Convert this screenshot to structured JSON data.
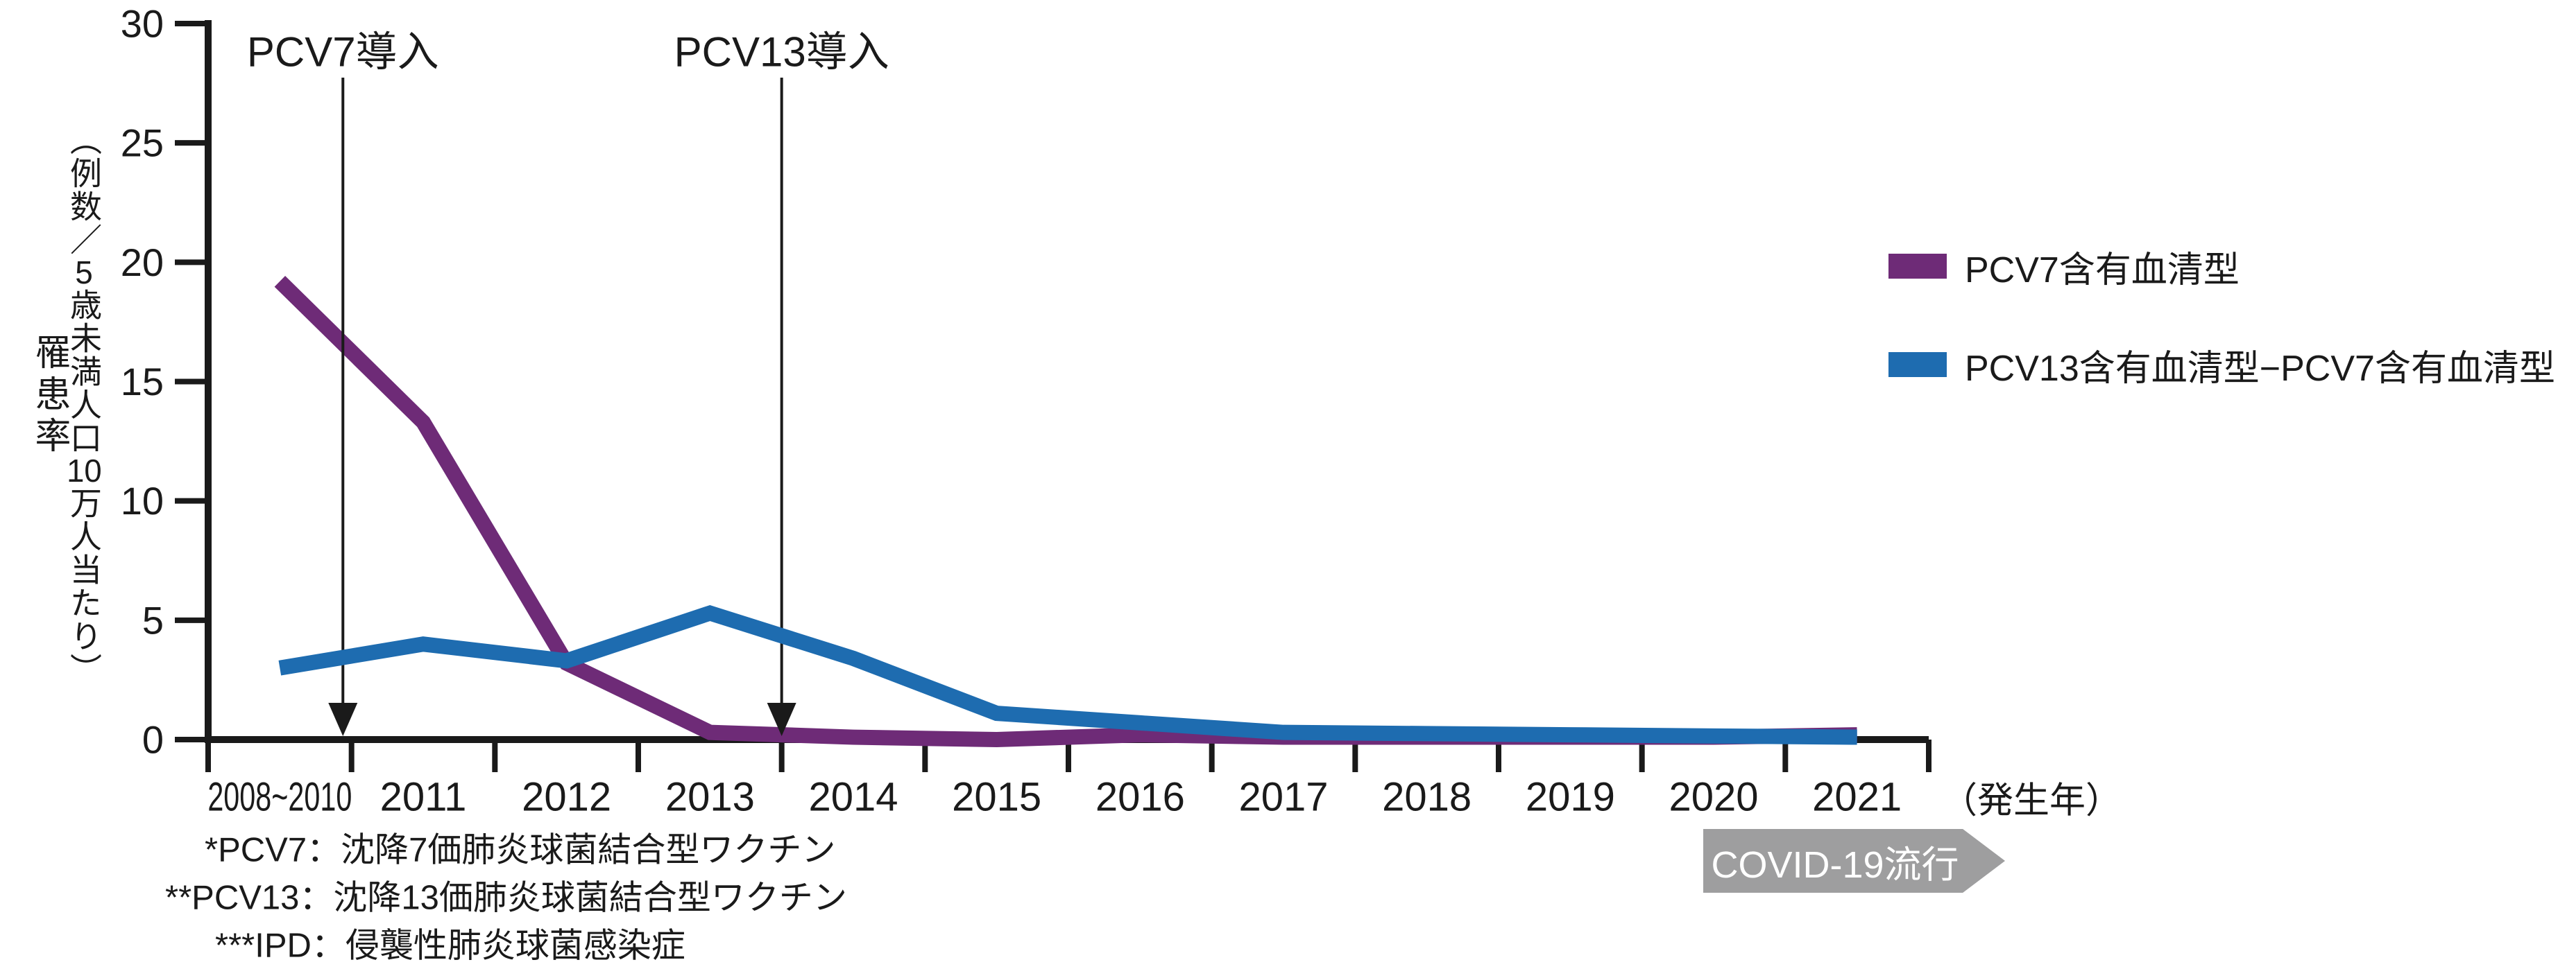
{
  "chart_data": {
    "type": "line",
    "categories": [
      "2008~2010",
      "2011",
      "2012",
      "2013",
      "2014",
      "2015",
      "2016",
      "2017",
      "2018",
      "2019",
      "2020",
      "2021"
    ],
    "series": [
      {
        "name": "PCV7含有血清型",
        "color": "#6E2B77",
        "values": [
          19.2,
          13.3,
          3.2,
          0.3,
          0.1,
          0.0,
          0.2,
          0.1,
          0.1,
          0.1,
          0.1,
          0.2
        ]
      },
      {
        "name": "PCV13含有血清型−PCV7含有血清型",
        "color": "#1E6CB0",
        "values": [
          3.0,
          4.0,
          3.3,
          5.3,
          3.4,
          1.1,
          0.7,
          0.3,
          0.25,
          0.2,
          0.15,
          0.1
        ]
      }
    ],
    "ylim": [
      0,
      30
    ],
    "yticks": [
      0,
      5,
      10,
      15,
      20,
      25,
      30
    ],
    "ylabel": "罹患率（例数／5歳未満人口10万人当たり）",
    "y_axis": {
      "outer_label": "罹患率",
      "inner": {
        "p1": "（例数／",
        "n1": "5",
        "p2": "歳未満人口",
        "n2": "10",
        "p3": "万人当たり）"
      }
    },
    "xlabel": "（発生年）",
    "grid": false,
    "legend_position": "right",
    "annotations": [
      {
        "label": "PCV7導入",
        "boundary_frac": 0.94
      },
      {
        "label": "PCV13導入",
        "boundary_frac": 4.0
      }
    ],
    "covid_badge": {
      "label": "COVID-19流行",
      "color": "#9E9E9F"
    }
  },
  "footnotes": [
    "*PCV7：沈降7価肺炎球菌結合型ワクチン",
    "**PCV13：沈降13価肺炎球菌結合型ワクチン",
    "***IPD：侵襲性肺炎球菌感染症"
  ]
}
